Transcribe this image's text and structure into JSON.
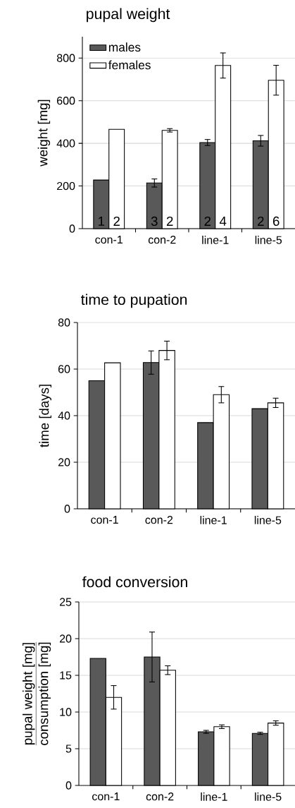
{
  "chart_data": [
    {
      "type": "bar",
      "title": "pupal weight",
      "ylabel": "weight [mg]",
      "categories": [
        "con-1",
        "con-2",
        "line-1",
        "line-5"
      ],
      "series": [
        {
          "name": "males",
          "color": "#595959",
          "values": [
            228,
            214,
            404,
            412
          ],
          "errors": [
            null,
            19,
            14,
            25
          ]
        },
        {
          "name": "females",
          "color": "#ffffff",
          "values": [
            466,
            461,
            765,
            696
          ],
          "errors": [
            null,
            8,
            59,
            70
          ]
        }
      ],
      "ylim": [
        0,
        900
      ],
      "yticks": [
        0,
        200,
        400,
        600,
        800
      ],
      "grid": "y",
      "legend": "top left",
      "annotations": [
        {
          "text": "1",
          "x": "con-1",
          "y": 35
        },
        {
          "text": "2",
          "x": "con-1",
          "y": 35
        },
        {
          "text": "3",
          "x": "con-2",
          "y": 35
        },
        {
          "text": "2",
          "x": "con-2",
          "y": 35
        },
        {
          "text": "2",
          "x": "line-1",
          "y": 35
        },
        {
          "text": "4",
          "x": "line-1",
          "y": 35
        },
        {
          "text": "2",
          "x": "line-5",
          "y": 35
        },
        {
          "text": "6",
          "x": "line-5",
          "y": 35
        }
      ]
    },
    {
      "type": "bar",
      "title": "time to pupation",
      "ylabel": "time [days]",
      "categories": [
        "con-1",
        "con-2",
        "line-1",
        "line-5"
      ],
      "series": [
        {
          "color": "#595959",
          "values": [
            55,
            62.8,
            37,
            43
          ],
          "errors": [
            null,
            5,
            null,
            null
          ]
        },
        {
          "color": "#ffffff",
          "values": [
            62.7,
            68,
            49,
            45.5
          ],
          "errors": [
            null,
            4,
            3.5,
            2
          ]
        }
      ],
      "ylim": [
        0,
        80
      ],
      "yticks": [
        0,
        20,
        40,
        60,
        80
      ],
      "grid": "y"
    },
    {
      "type": "bar",
      "title": "food conversion",
      "ylabel": "pupal weight [mg]",
      "categories": [
        "con-1",
        "con-2",
        "line-1",
        "line-5"
      ],
      "series": [
        {
          "color": "#595959",
          "values": [
            17.3,
            17.5,
            7.3,
            7.1
          ],
          "errors": [
            null,
            3.4,
            0.2,
            0.15
          ]
        },
        {
          "color": "#ffffff",
          "values": [
            12.0,
            15.7,
            8.0,
            8.5
          ],
          "errors": [
            1.6,
            0.6,
            0.25,
            0.3
          ]
        }
      ],
      "ylim": [
        0,
        25
      ],
      "yticks": [
        0,
        5,
        10,
        15,
        20,
        25
      ],
      "grid": "y",
      "annotations": [
        "consumption [mg]"
      ]
    }
  ]
}
